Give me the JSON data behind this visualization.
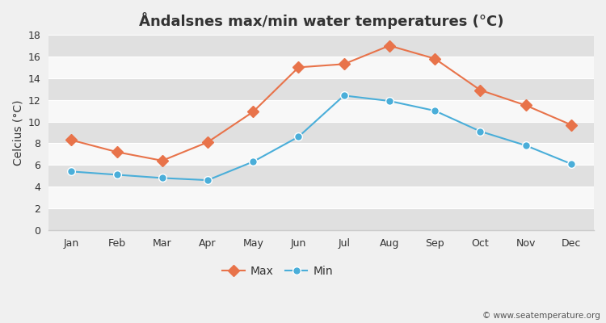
{
  "title": "Åndalsnes max/min water temperatures (°C)",
  "ylabel": "Celcius (°C)",
  "months": [
    "Jan",
    "Feb",
    "Mar",
    "Apr",
    "May",
    "Jun",
    "Jul",
    "Aug",
    "Sep",
    "Oct",
    "Nov",
    "Dec"
  ],
  "max_values": [
    8.3,
    7.2,
    6.4,
    8.1,
    10.9,
    15.0,
    15.3,
    17.0,
    15.8,
    12.9,
    11.5,
    9.7
  ],
  "min_values": [
    5.4,
    5.1,
    4.8,
    4.6,
    6.3,
    8.6,
    12.4,
    11.9,
    11.0,
    9.1,
    7.8,
    6.1
  ],
  "max_color": "#e8734a",
  "min_color": "#4aaed9",
  "fig_bg_color": "#f0f0f0",
  "plot_bg_color": "#f0f0f0",
  "stripe_color_dark": "#e0e0e0",
  "stripe_color_light": "#f8f8f8",
  "grid_line_color": "#d8d8d8",
  "ylim": [
    0,
    18
  ],
  "yticks": [
    0,
    2,
    4,
    6,
    8,
    10,
    12,
    14,
    16,
    18
  ],
  "legend_labels": [
    "Max",
    "Min"
  ],
  "watermark": "© www.seatemperature.org",
  "title_fontsize": 13,
  "label_fontsize": 10,
  "tick_fontsize": 9,
  "legend_fontsize": 10
}
